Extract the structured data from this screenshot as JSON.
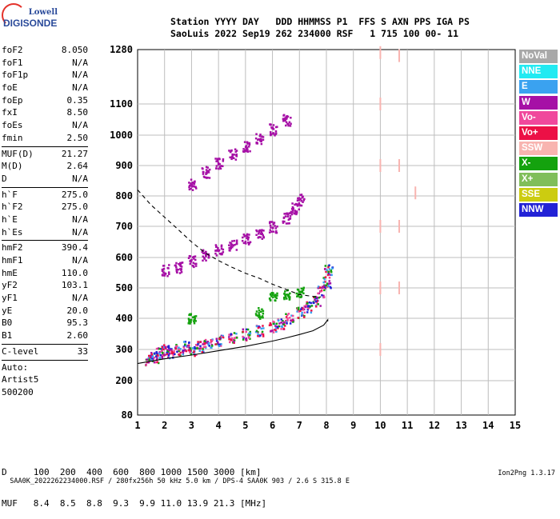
{
  "logo": {
    "brand": "Lowell",
    "product": "DIGISONDE"
  },
  "header": {
    "line1": "Station YYYY DAY   DDD HHMMSS P1  FFS S AXN PPS IGA PS",
    "line2": "SaoLuis 2022 Sep19 262 234000 RSF   1 715 100 00- 11"
  },
  "params_groups": [
    [
      {
        "k": "foF2",
        "v": "8.050"
      },
      {
        "k": "foF1",
        "v": "N/A"
      },
      {
        "k": "foF1p",
        "v": "N/A"
      },
      {
        "k": "foE",
        "v": "N/A"
      },
      {
        "k": "foEp",
        "v": "0.35"
      },
      {
        "k": "fxI",
        "v": "8.50"
      },
      {
        "k": "foEs",
        "v": "N/A"
      },
      {
        "k": "fmin",
        "v": "2.50"
      }
    ],
    [
      {
        "k": "MUF(D)",
        "v": "21.27"
      },
      {
        "k": "M(D)",
        "v": "2.64"
      },
      {
        "k": "D",
        "v": "N/A"
      }
    ],
    [
      {
        "k": "h`F",
        "v": "275.0"
      },
      {
        "k": "h`F2",
        "v": "275.0"
      },
      {
        "k": "h`E",
        "v": "N/A"
      },
      {
        "k": "h`Es",
        "v": "N/A"
      }
    ],
    [
      {
        "k": "hmF2",
        "v": "390.4"
      },
      {
        "k": "hmF1",
        "v": "N/A"
      },
      {
        "k": "hmE",
        "v": "110.0"
      },
      {
        "k": "yF2",
        "v": "103.1"
      },
      {
        "k": "yF1",
        "v": "N/A"
      },
      {
        "k": "yE",
        "v": "20.0"
      },
      {
        "k": "B0",
        "v": "95.3"
      },
      {
        "k": "B1",
        "v": "2.60"
      }
    ],
    [
      {
        "k": "C-level",
        "v": "33"
      }
    ]
  ],
  "autoscale": {
    "line1": "Auto:",
    "line2": "Artist5",
    "line3": "500200"
  },
  "legend": [
    {
      "label": "NoVal",
      "color": "#a8a8a8"
    },
    {
      "label": "NNE",
      "color": "#22eaf2"
    },
    {
      "label": "E",
      "color": "#3aa2f0"
    },
    {
      "label": "W",
      "color": "#a610a6"
    },
    {
      "label": "Vo-",
      "color": "#f0489c"
    },
    {
      "label": "Vo+",
      "color": "#ec1046"
    },
    {
      "label": "SSW",
      "color": "#f8b4b0"
    },
    {
      "label": "X-",
      "color": "#14a20e"
    },
    {
      "label": "X+",
      "color": "#80be5a"
    },
    {
      "label": "SSE",
      "color": "#cccc10"
    },
    {
      "label": "NNW",
      "color": "#2222d6"
    }
  ],
  "muf_table": {
    "d_line": "D     100  200  400  600  800 1000 1500 3000 [km]",
    "muf_line": "MUF   8.4  8.5  8.8  9.3  9.9 11.0 13.9 21.3 [MHz]"
  },
  "footer": {
    "left": "SAA0K_2022262234000.RSF / 280fx256h 50 kHz 5.0 km / DPS-4 SAA0K 903 / 2.6 S 315.8 E",
    "right": "Ion2Png 1.3.17"
  },
  "chart_data": {
    "type": "scatter",
    "title": "",
    "xlabel": "",
    "ylabel": "",
    "xlim": [
      1,
      15
    ],
    "ylim": [
      80,
      1280
    ],
    "x_ticks": [
      1,
      2,
      3,
      4,
      5,
      6,
      7,
      8,
      9,
      10,
      11,
      12,
      13,
      14,
      15
    ],
    "y_ticks": [
      80,
      200,
      300,
      400,
      500,
      600,
      700,
      800,
      900,
      1000,
      1100,
      1280
    ],
    "grid": true,
    "legend_placement": "right",
    "series": [
      {
        "name": "O-trace low band (Vo+/Vo-/NNW)",
        "color": "#ec1046",
        "points": [
          [
            1.4,
            268
          ],
          [
            1.6,
            275
          ],
          [
            1.8,
            290
          ],
          [
            2.0,
            300
          ],
          [
            2.2,
            292
          ],
          [
            2.5,
            300
          ],
          [
            2.8,
            310
          ],
          [
            3.0,
            300
          ],
          [
            3.3,
            312
          ],
          [
            3.6,
            320
          ],
          [
            4.0,
            330
          ],
          [
            4.5,
            340
          ],
          [
            5.0,
            350
          ],
          [
            5.5,
            362
          ],
          [
            6.0,
            375
          ],
          [
            6.3,
            385
          ],
          [
            6.6,
            400
          ],
          [
            7.0,
            420
          ],
          [
            7.3,
            440
          ],
          [
            7.6,
            460
          ],
          [
            7.8,
            490
          ],
          [
            8.0,
            520
          ],
          [
            8.05,
            560
          ]
        ]
      },
      {
        "name": "W multi-hop band",
        "color": "#a610a6",
        "points": [
          [
            2.0,
            560
          ],
          [
            2.5,
            570
          ],
          [
            3.0,
            590
          ],
          [
            3.5,
            610
          ],
          [
            4.0,
            625
          ],
          [
            4.5,
            640
          ],
          [
            5.0,
            660
          ],
          [
            5.5,
            680
          ],
          [
            6.0,
            700
          ],
          [
            6.5,
            730
          ],
          [
            6.8,
            760
          ],
          [
            7.0,
            790
          ]
        ]
      },
      {
        "name": "Sparse upper band",
        "color": "#a610a6",
        "points": [
          [
            3.0,
            840
          ],
          [
            3.5,
            880
          ],
          [
            4.0,
            910
          ],
          [
            4.5,
            940
          ],
          [
            5.0,
            965
          ],
          [
            5.5,
            990
          ],
          [
            6.0,
            1020
          ],
          [
            6.5,
            1050
          ]
        ]
      },
      {
        "name": "SSW vertical streaks",
        "color": "#f8b4b0",
        "points": [
          [
            10.0,
            1270
          ],
          [
            10.0,
            1100
          ],
          [
            10.0,
            900
          ],
          [
            10.0,
            700
          ],
          [
            10.0,
            500
          ],
          [
            10.0,
            300
          ],
          [
            10.7,
            1260
          ],
          [
            10.7,
            900
          ],
          [
            10.7,
            700
          ],
          [
            10.7,
            500
          ],
          [
            11.3,
            810
          ]
        ]
      },
      {
        "name": "X trace",
        "color": "#14a20e",
        "points": [
          [
            3.0,
            400
          ],
          [
            5.5,
            420
          ],
          [
            6.0,
            470
          ],
          [
            6.5,
            480
          ],
          [
            7.0,
            490
          ]
        ]
      }
    ],
    "curves": [
      {
        "name": "Profile (solid)",
        "style": "solid",
        "points": [
          [
            1.0,
            255
          ],
          [
            2.0,
            270
          ],
          [
            3.0,
            282
          ],
          [
            4.0,
            296
          ],
          [
            5.0,
            310
          ],
          [
            6.0,
            327
          ],
          [
            6.5,
            337
          ],
          [
            7.0,
            348
          ],
          [
            7.5,
            360
          ],
          [
            7.9,
            378
          ],
          [
            8.05,
            395
          ],
          [
            8.05,
            390
          ]
        ]
      },
      {
        "name": "MUF curve (dashed)",
        "style": "dashed",
        "points": [
          [
            1.0,
            820
          ],
          [
            1.5,
            770
          ],
          [
            2.0,
            730
          ],
          [
            2.5,
            690
          ],
          [
            3.0,
            650
          ],
          [
            3.5,
            615
          ],
          [
            4.0,
            590
          ],
          [
            4.5,
            568
          ],
          [
            5.0,
            548
          ],
          [
            5.5,
            532
          ],
          [
            6.0,
            512
          ],
          [
            6.5,
            495
          ],
          [
            7.0,
            478
          ],
          [
            7.5,
            472
          ],
          [
            7.8,
            470
          ]
        ]
      }
    ]
  }
}
